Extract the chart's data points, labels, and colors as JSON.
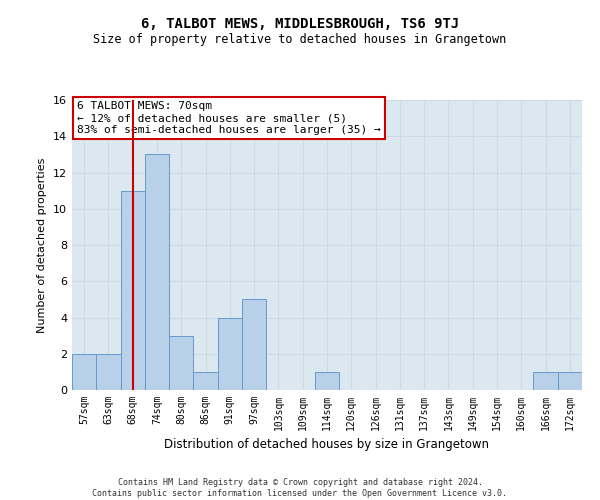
{
  "title": "6, TALBOT MEWS, MIDDLESBROUGH, TS6 9TJ",
  "subtitle": "Size of property relative to detached houses in Grangetown",
  "xlabel": "Distribution of detached houses by size in Grangetown",
  "ylabel": "Number of detached properties",
  "categories": [
    "57sqm",
    "63sqm",
    "68sqm",
    "74sqm",
    "80sqm",
    "86sqm",
    "91sqm",
    "97sqm",
    "103sqm",
    "109sqm",
    "114sqm",
    "120sqm",
    "126sqm",
    "131sqm",
    "137sqm",
    "143sqm",
    "149sqm",
    "154sqm",
    "160sqm",
    "166sqm",
    "172sqm"
  ],
  "values": [
    2,
    2,
    11,
    13,
    3,
    1,
    4,
    5,
    0,
    0,
    1,
    0,
    0,
    0,
    0,
    0,
    0,
    0,
    0,
    1,
    1
  ],
  "bar_color": "#b8d0e8",
  "bar_edge_color": "#6699cc",
  "grid_color": "#ccd9e8",
  "background_color": "#dce8f0",
  "vline_x_index": 2,
  "vline_color": "#cc0000",
  "annotation_text": "6 TALBOT MEWS: 70sqm\n← 12% of detached houses are smaller (5)\n83% of semi-detached houses are larger (35) →",
  "annotation_box_color": "#ffffff",
  "annotation_box_edge_color": "#cc0000",
  "ylim": [
    0,
    16
  ],
  "yticks": [
    0,
    2,
    4,
    6,
    8,
    10,
    12,
    14,
    16
  ],
  "footer": "Contains HM Land Registry data © Crown copyright and database right 2024.\nContains public sector information licensed under the Open Government Licence v3.0."
}
